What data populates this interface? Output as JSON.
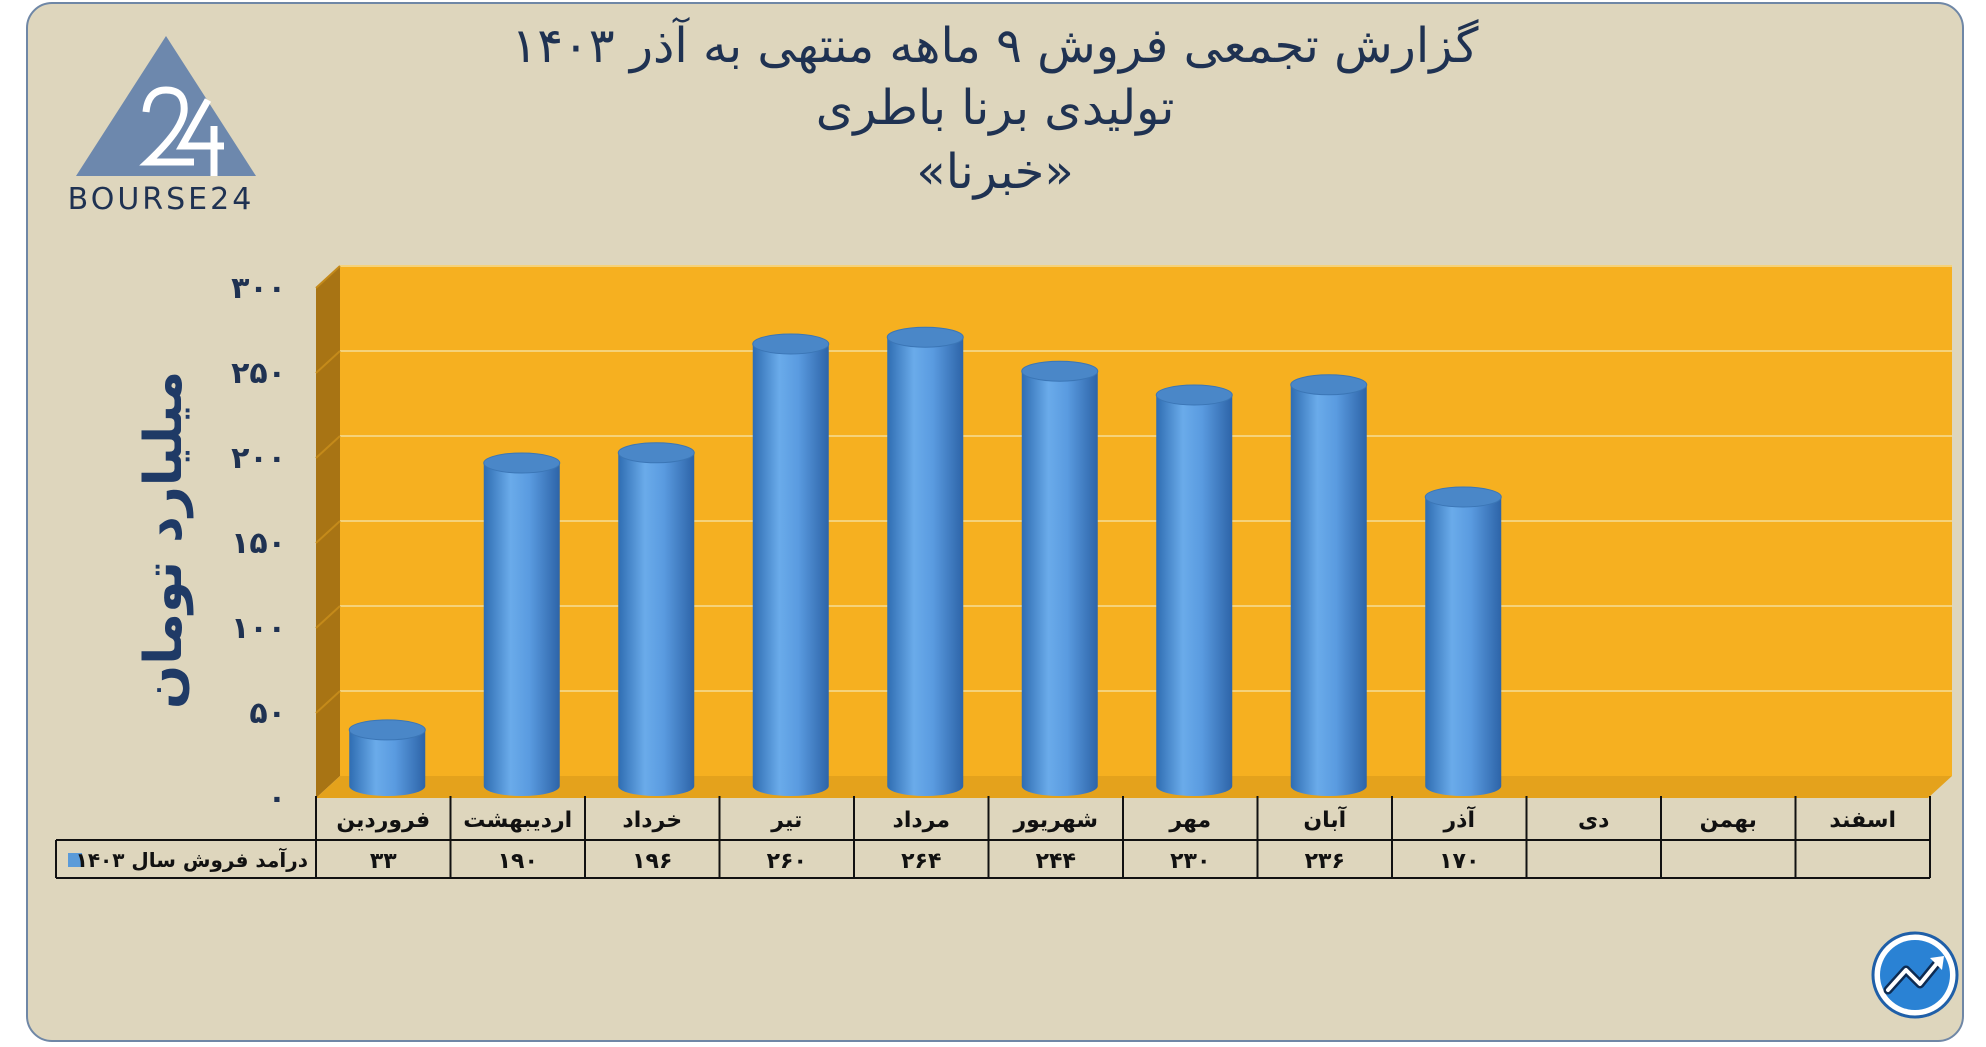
{
  "title_lines": [
    "گزارش تجمعی فروش ۹ ماهه منتهی به آذر ۱۴۰۳",
    "تولیدی برنا باطری",
    "«خبرنا»"
  ],
  "logo_text": "BOURSE24",
  "colors": {
    "background": "#ded6bd",
    "plot_area": "#f6b020",
    "plot_side": "#a87414",
    "bar": "#5b9bd9",
    "title": "#1f3252"
  },
  "chart_data": {
    "type": "bar",
    "title": "گزارش تجمعی فروش ۹ ماهه منتهی به آذر ۱۴۰۳",
    "ylabel": "میلیارد تومان",
    "ylim": [
      0,
      300
    ],
    "yticks": [
      0,
      50,
      100,
      150,
      200,
      250,
      300
    ],
    "ytick_labels": [
      "۰",
      "۵۰",
      "۱۰۰",
      "۱۵۰",
      "۲۰۰",
      "۲۵۰",
      "۳۰۰"
    ],
    "categories": [
      "فروردین",
      "اردیبهشت",
      "خرداد",
      "تیر",
      "مرداد",
      "شهریور",
      "مهر",
      "آبان",
      "آذر",
      "دی",
      "بهمن",
      "اسفند"
    ],
    "series": [
      {
        "name": "درآمد فروش سال ۱۴۰۳",
        "values": [
          33,
          190,
          196,
          260,
          264,
          244,
          230,
          236,
          170,
          null,
          null,
          null
        ],
        "value_labels": [
          "۳۳",
          "۱۹۰",
          "۱۹۶",
          "۲۶۰",
          "۲۶۴",
          "۲۴۴",
          "۲۳۰",
          "۲۳۶",
          "۱۷۰",
          "",
          "",
          ""
        ]
      }
    ],
    "grid": true,
    "legend": "data-table-left"
  }
}
